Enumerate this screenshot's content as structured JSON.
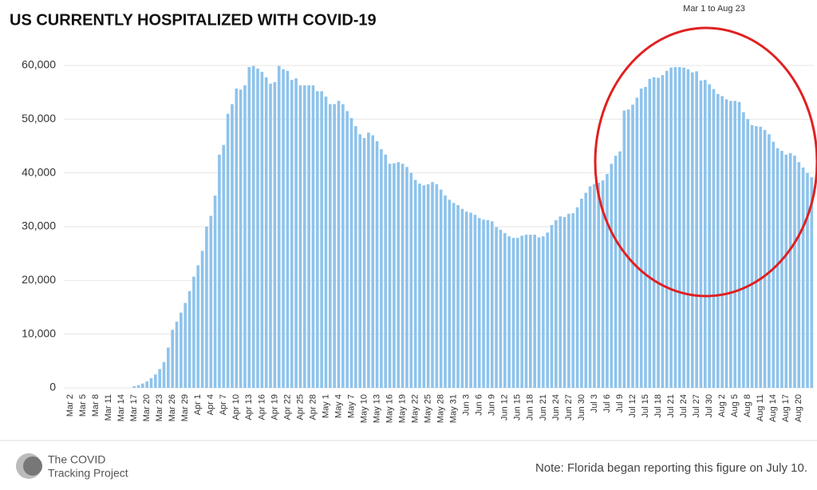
{
  "chart_data": {
    "type": "bar",
    "title": "US CURRENTLY HOSPITALIZED WITH COVID-19",
    "subtitle": "Mar 1 to Aug 23",
    "note": "Note: Florida began reporting this figure on July 10.",
    "source": [
      "The COVID",
      "Tracking Project"
    ],
    "color": "#8ec3eb",
    "grid": true,
    "ylim": [
      0,
      60000
    ],
    "yticks": [
      0,
      {
        "value": 10000,
        "label": "10,000"
      },
      {
        "value": 20000,
        "label": "20,000"
      },
      {
        "value": 30000,
        "label": "30,000"
      },
      {
        "value": 40000,
        "label": "40,000"
      },
      {
        "value": 50000,
        "label": "50,000"
      },
      {
        "value": 60000,
        "label": "60,000"
      }
    ],
    "categories": [
      null,
      "Mar 2",
      null,
      null,
      "Mar 5",
      null,
      null,
      "Mar 8",
      null,
      null,
      "Mar 11",
      null,
      null,
      "Mar 14",
      null,
      null,
      "Mar 17",
      null,
      null,
      "Mar 20",
      null,
      null,
      "Mar 23",
      null,
      null,
      "Mar 26",
      null,
      null,
      "Mar 29",
      null,
      null,
      "Apr 1",
      null,
      null,
      "Apr 4",
      null,
      null,
      "Apr 7",
      null,
      null,
      "Apr 10",
      null,
      null,
      "Apr 13",
      null,
      null,
      "Apr 16",
      null,
      null,
      "Apr 19",
      null,
      null,
      "Apr 22",
      null,
      null,
      "Apr 25",
      null,
      null,
      "Apr 28",
      null,
      null,
      "May 1",
      null,
      null,
      "May 4",
      null,
      null,
      "May 7",
      null,
      null,
      "May 10",
      null,
      null,
      "May 13",
      null,
      null,
      "May 16",
      null,
      null,
      "May 19",
      null,
      null,
      "May 22",
      null,
      null,
      "May 25",
      null,
      null,
      "May 28",
      null,
      null,
      "May 31",
      null,
      null,
      "Jun 3",
      null,
      null,
      "Jun 6",
      null,
      null,
      "Jun 9",
      null,
      null,
      "Jun 12",
      null,
      null,
      "Jun 15",
      null,
      null,
      "Jun 18",
      null,
      null,
      "Jun 21",
      null,
      null,
      "Jun 24",
      null,
      null,
      "Jun 27",
      null,
      null,
      "Jun 30",
      null,
      null,
      "Jul 3",
      null,
      null,
      "Jul 6",
      null,
      null,
      "Jul 9",
      null,
      null,
      "Jul 12",
      null,
      null,
      "Jul 15",
      null,
      null,
      "Jul 18",
      null,
      null,
      "Jul 21",
      null,
      null,
      "Jul 24",
      null,
      null,
      "Jul 27",
      null,
      null,
      "Jul 30",
      null,
      null,
      "Aug 2",
      null,
      null,
      "Aug 5",
      null,
      null,
      "Aug 8",
      null,
      null,
      "Aug 11",
      null,
      null,
      "Aug 14",
      null,
      null,
      "Aug 17",
      null,
      null,
      "Aug 20",
      null,
      null,
      null
    ],
    "values": [
      0,
      0,
      0,
      0,
      0,
      0,
      0,
      0,
      0,
      0,
      0,
      0,
      0,
      0,
      0,
      0,
      300,
      500,
      800,
      1200,
      1800,
      2500,
      3500,
      4800,
      7500,
      10800,
      12300,
      14000,
      15800,
      18000,
      20700,
      22800,
      25500,
      30000,
      32000,
      35800,
      43400,
      45200,
      51000,
      52800,
      55700,
      55500,
      56300,
      59700,
      59900,
      59400,
      58800,
      57800,
      56600,
      56900,
      59900,
      59300,
      59000,
      57300,
      57600,
      56300,
      56300,
      56300,
      56300,
      55200,
      55200,
      54200,
      52800,
      52800,
      53400,
      52800,
      51500,
      50200,
      48700,
      47200,
      46500,
      47500,
      47000,
      45900,
      44400,
      43400,
      41700,
      41800,
      42000,
      41700,
      41100,
      40000,
      38700,
      38000,
      37700,
      37900,
      38300,
      37900,
      36900,
      35800,
      35000,
      34400,
      34000,
      33300,
      32800,
      32600,
      32200,
      31600,
      31300,
      31200,
      31000,
      29900,
      29400,
      28800,
      28200,
      27900,
      27900,
      28300,
      28500,
      28500,
      28500,
      28000,
      28200,
      28900,
      30300,
      31200,
      31900,
      31800,
      32400,
      32500,
      33600,
      35200,
      36300,
      37500,
      37900,
      38200,
      38600,
      39800,
      41700,
      43200,
      44000,
      51600,
      51800,
      52700,
      54000,
      55700,
      56000,
      57500,
      57800,
      57700,
      58200,
      59000,
      59600,
      59700,
      59700,
      59600,
      59300,
      58700,
      58900,
      57200,
      57300,
      56500,
      55600,
      54700,
      54300,
      53700,
      53400,
      53400,
      53200,
      51300,
      50000,
      48900,
      48700,
      48600,
      48000,
      47200,
      45800,
      44600,
      44100,
      43400,
      43700,
      43200,
      42000,
      41000,
      40000,
      39200
    ]
  }
}
